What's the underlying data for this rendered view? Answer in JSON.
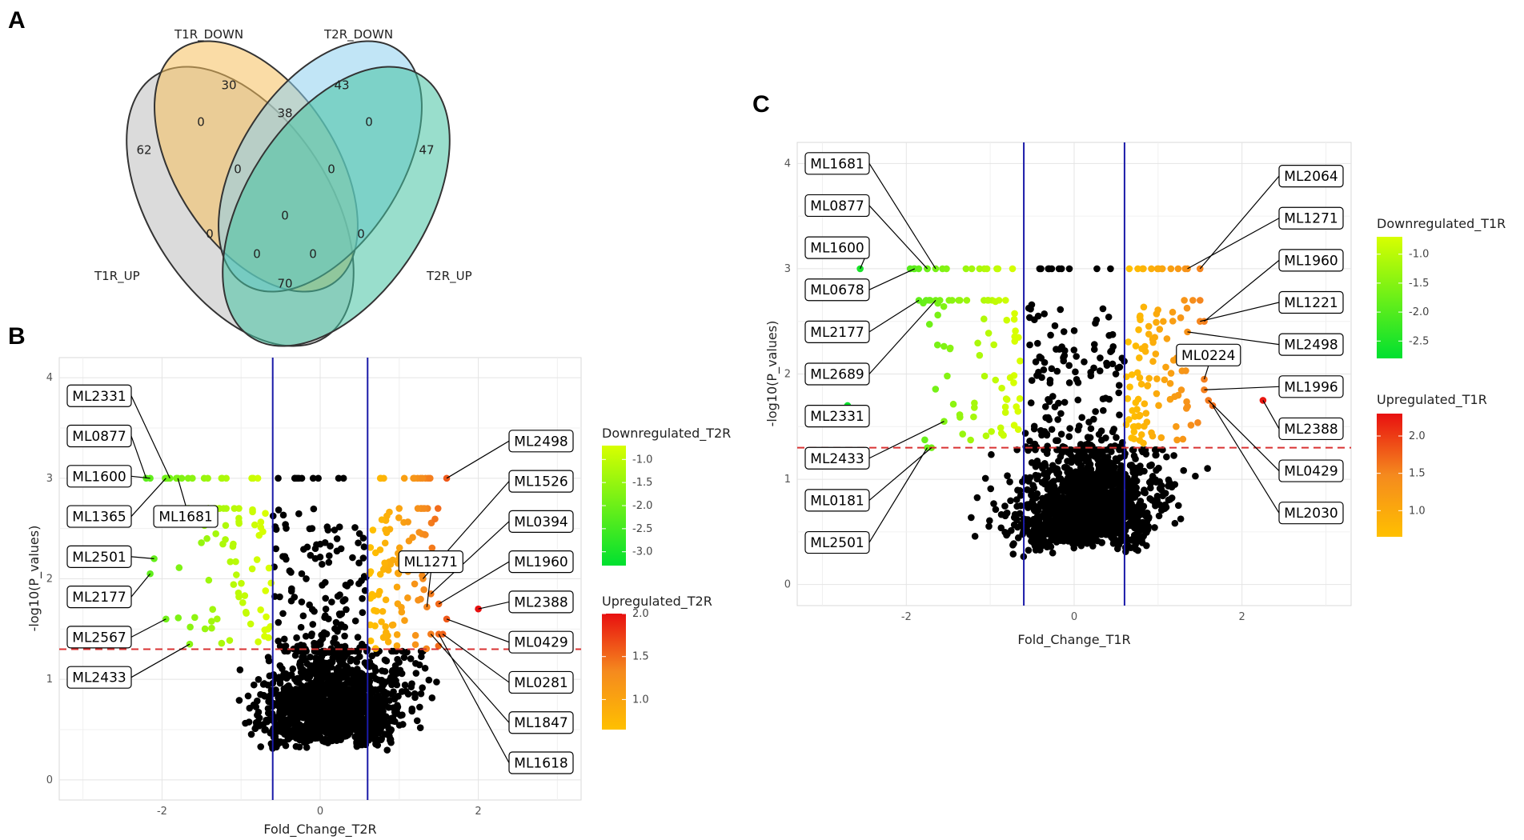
{
  "panels": {
    "a": "A",
    "b": "B",
    "c": "C"
  },
  "venn": {
    "sets": [
      "T1R_DOWN",
      "T2R_DOWN",
      "T1R_UP",
      "T2R_UP"
    ],
    "counts": {
      "t1down_only": "30",
      "t2down_only": "43",
      "t1up_only": "62",
      "t2up_only": "47",
      "t1down_t2down": "38",
      "t1up_t1down": "0",
      "t2down_t2up": "0",
      "t1up_t1down_t2down": "0",
      "t1down_t2down_t2up": "0",
      "all_four": "0",
      "t1up_t2down": "0",
      "t1down_t2up": "0",
      "t1up_t2down_t2up": "0",
      "t1up_t1down_t2up": "0",
      "t1up_t2up": "70"
    },
    "colors": {
      "t1up": "#bdbdbd",
      "t1down": "#f6c05c",
      "t2down": "#8ecfee",
      "t2up": "#46c3a3"
    }
  },
  "chart_data": [
    {
      "type": "scatter",
      "id": "B",
      "xlabel": "Fold_Change_T2R",
      "ylabel": "-log10(P_values)",
      "xlim": [
        -3.3,
        3.3
      ],
      "ylim": [
        -0.2,
        4.2
      ],
      "xticks": [
        -2,
        0,
        2
      ],
      "yticks": [
        0,
        1,
        2,
        3,
        4
      ],
      "vlines": [
        -0.6,
        0.6
      ],
      "hline": 1.3,
      "legend_down": {
        "title": "Downregulated_T2R",
        "range": [
          -3.3,
          -0.7
        ],
        "ticks": [
          -1.0,
          -1.5,
          -2.0,
          -2.5,
          -3.0
        ]
      },
      "legend_up": {
        "title": "Upregulated_T2R",
        "range": [
          0.65,
          2.0
        ],
        "ticks": [
          2.0,
          1.5,
          1.0
        ]
      },
      "labels": [
        {
          "name": "ML2331",
          "x": -1.9,
          "y": 3.0,
          "side": "left",
          "ly": 3.82
        },
        {
          "name": "ML0877",
          "x": -2.2,
          "y": 3.0,
          "side": "left",
          "ly": 3.42
        },
        {
          "name": "ML1600",
          "x": -2.15,
          "y": 3.0,
          "side": "left",
          "ly": 3.02
        },
        {
          "name": "ML1365",
          "x": -1.95,
          "y": 3.0,
          "side": "left",
          "ly": 2.62
        },
        {
          "name": "ML1681",
          "x": -1.8,
          "y": 3.0,
          "side": "inner",
          "lx": -1.7,
          "ly": 2.62
        },
        {
          "name": "ML2501",
          "x": -2.1,
          "y": 2.2,
          "side": "left",
          "ly": 2.22
        },
        {
          "name": "ML2177",
          "x": -2.15,
          "y": 2.05,
          "side": "left",
          "ly": 1.82
        },
        {
          "name": "ML2567",
          "x": -1.95,
          "y": 1.6,
          "side": "left",
          "ly": 1.42
        },
        {
          "name": "ML2433",
          "x": -1.65,
          "y": 1.35,
          "side": "left",
          "ly": 1.02
        },
        {
          "name": "ML2498",
          "x": 1.6,
          "y": 3.0,
          "side": "right",
          "ly": 3.37
        },
        {
          "name": "ML1526",
          "x": 1.3,
          "y": 2.0,
          "side": "right",
          "ly": 2.97
        },
        {
          "name": "ML0394",
          "x": 1.4,
          "y": 1.85,
          "side": "right",
          "ly": 2.57
        },
        {
          "name": "ML1271",
          "x": 1.35,
          "y": 1.72,
          "side": "inner",
          "lx": 1.4,
          "ly": 2.17
        },
        {
          "name": "ML1960",
          "x": 1.5,
          "y": 1.75,
          "side": "right",
          "ly": 2.17
        },
        {
          "name": "ML2388",
          "x": 2.0,
          "y": 1.7,
          "side": "right",
          "ly": 1.77
        },
        {
          "name": "ML0429",
          "x": 1.6,
          "y": 1.6,
          "side": "right",
          "ly": 1.37
        },
        {
          "name": "ML0281",
          "x": 1.55,
          "y": 1.45,
          "side": "right",
          "ly": 0.97
        },
        {
          "name": "ML1847",
          "x": 1.4,
          "y": 1.45,
          "side": "right",
          "ly": 0.57
        },
        {
          "name": "ML1618",
          "x": 1.5,
          "y": 1.45,
          "side": "right",
          "ly": 0.17
        }
      ]
    },
    {
      "type": "scatter",
      "id": "C",
      "xlabel": "Fold_Change_T1R",
      "ylabel": "-log10(P_values)",
      "xlim": [
        -3.3,
        3.3
      ],
      "ylim": [
        -0.2,
        4.2
      ],
      "xticks": [
        -2,
        0,
        2
      ],
      "yticks": [
        0,
        1,
        2,
        3,
        4
      ],
      "vlines": [
        -0.6,
        0.6
      ],
      "hline": 1.3,
      "legend_down": {
        "title": "Downregulated_T1R",
        "range": [
          -2.8,
          -0.7
        ],
        "ticks": [
          -1.0,
          -1.5,
          -2.0,
          -2.5
        ]
      },
      "legend_up": {
        "title": "Upregulated_T1R",
        "range": [
          0.65,
          2.3
        ],
        "ticks": [
          2.0,
          1.5,
          1.0
        ]
      },
      "labels": [
        {
          "name": "ML1681",
          "x": -1.65,
          "y": 3.0,
          "side": "left",
          "ly": 4.0
        },
        {
          "name": "ML0877",
          "x": -1.75,
          "y": 3.0,
          "side": "left",
          "ly": 3.6
        },
        {
          "name": "ML1600",
          "x": -2.55,
          "y": 3.0,
          "side": "left",
          "ly": 3.2
        },
        {
          "name": "ML0678",
          "x": -1.9,
          "y": 3.0,
          "side": "left",
          "ly": 2.8
        },
        {
          "name": "ML2177",
          "x": -1.85,
          "y": 2.7,
          "side": "left",
          "ly": 2.4
        },
        {
          "name": "ML2689",
          "x": -1.65,
          "y": 2.7,
          "side": "left",
          "ly": 2.0
        },
        {
          "name": "ML2331",
          "x": -2.7,
          "y": 1.7,
          "side": "left",
          "ly": 1.6,
          "noline": true
        },
        {
          "name": "ML2433",
          "x": -1.55,
          "y": 1.55,
          "side": "left",
          "ly": 1.2
        },
        {
          "name": "ML0181",
          "x": -1.7,
          "y": 1.3,
          "side": "left",
          "ly": 0.8
        },
        {
          "name": "ML2501",
          "x": -1.75,
          "y": 1.3,
          "side": "left",
          "ly": 0.4
        },
        {
          "name": "ML2064",
          "x": 1.5,
          "y": 3.0,
          "side": "right",
          "ly": 3.88
        },
        {
          "name": "ML1271",
          "x": 1.35,
          "y": 3.0,
          "side": "right",
          "ly": 3.48
        },
        {
          "name": "ML1960",
          "x": 1.55,
          "y": 2.5,
          "side": "right",
          "ly": 3.08
        },
        {
          "name": "ML1221",
          "x": 1.5,
          "y": 2.5,
          "side": "right",
          "ly": 2.68
        },
        {
          "name": "ML2498",
          "x": 1.35,
          "y": 2.4,
          "side": "right",
          "ly": 2.28
        },
        {
          "name": "ML0224",
          "x": 1.55,
          "y": 1.95,
          "side": "inner",
          "lx": 1.6,
          "ly": 2.18
        },
        {
          "name": "ML1996",
          "x": 1.55,
          "y": 1.85,
          "side": "right",
          "ly": 1.88
        },
        {
          "name": "ML2388",
          "x": 2.25,
          "y": 1.75,
          "side": "right",
          "ly": 1.48
        },
        {
          "name": "ML0429",
          "x": 1.6,
          "y": 1.75,
          "side": "right",
          "ly": 1.08
        },
        {
          "name": "ML2030",
          "x": 1.65,
          "y": 1.7,
          "side": "right",
          "ly": 0.68
        }
      ]
    }
  ]
}
